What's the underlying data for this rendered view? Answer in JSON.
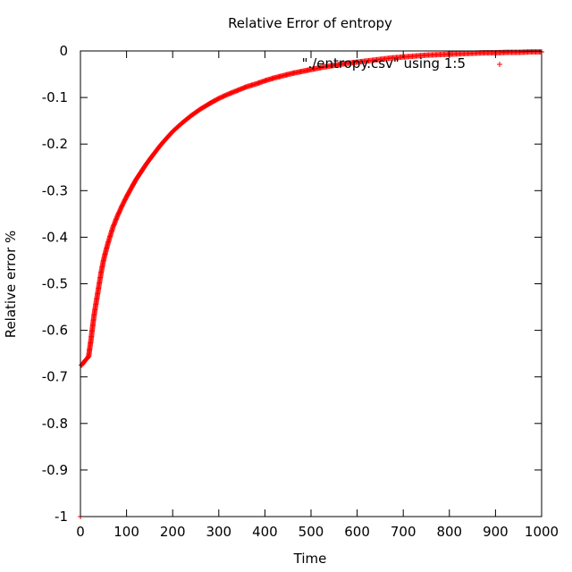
{
  "chart_data": {
    "type": "scatter",
    "title": "Relative Error of entropy",
    "xlabel": "Time",
    "ylabel": "Relative error %",
    "xlim": [
      0,
      1000
    ],
    "ylim": [
      -1,
      0
    ],
    "x_ticks": [
      0,
      100,
      200,
      300,
      400,
      500,
      600,
      700,
      800,
      900,
      1000
    ],
    "x_tick_labels": [
      "0",
      "100",
      "200",
      "300",
      "400",
      "500",
      "600",
      "700",
      "800",
      "900",
      "1000"
    ],
    "y_ticks": [
      0,
      -0.1,
      -0.2,
      -0.3,
      -0.4,
      -0.5,
      -0.6,
      -0.7,
      -0.8,
      -0.9,
      -1
    ],
    "y_tick_labels": [
      "0",
      "-0.1",
      "-0.2",
      "-0.3",
      "-0.4",
      "-0.5",
      "-0.6",
      "-0.7",
      "-0.8",
      "-0.9",
      "-1"
    ],
    "grid": false,
    "legend_position": "top-right",
    "series": [
      {
        "name": "\"./entropy.csv\" using 1:5",
        "color": "#ff0000",
        "marker": "plus",
        "x": [
          0,
          2,
          5,
          10,
          15,
          18,
          20,
          23,
          26,
          30,
          35,
          40,
          45,
          50,
          55,
          60,
          70,
          80,
          90,
          100,
          110,
          120,
          130,
          140,
          150,
          160,
          170,
          180,
          190,
          200,
          220,
          240,
          260,
          280,
          300,
          320,
          340,
          360,
          380,
          400,
          420,
          440,
          460,
          480,
          500,
          525,
          550,
          575,
          600,
          625,
          650,
          675,
          700,
          725,
          750,
          775,
          800,
          825,
          850,
          875,
          900,
          925,
          950,
          975,
          1000
        ],
        "y": [
          -1.0,
          -0.675,
          -0.672,
          -0.665,
          -0.66,
          -0.655,
          -0.64,
          -0.62,
          -0.595,
          -0.565,
          -0.535,
          -0.505,
          -0.475,
          -0.45,
          -0.43,
          -0.412,
          -0.38,
          -0.355,
          -0.333,
          -0.313,
          -0.295,
          -0.277,
          -0.262,
          -0.247,
          -0.233,
          -0.22,
          -0.207,
          -0.195,
          -0.184,
          -0.173,
          -0.155,
          -0.139,
          -0.125,
          -0.113,
          -0.102,
          -0.093,
          -0.085,
          -0.077,
          -0.071,
          -0.064,
          -0.058,
          -0.053,
          -0.048,
          -0.044,
          -0.04,
          -0.035,
          -0.031,
          -0.027,
          -0.024,
          -0.021,
          -0.018,
          -0.015,
          -0.013,
          -0.011,
          -0.009,
          -0.008,
          -0.007,
          -0.006,
          -0.005,
          -0.004,
          -0.004,
          -0.003,
          -0.003,
          -0.002,
          -0.002
        ]
      }
    ]
  }
}
